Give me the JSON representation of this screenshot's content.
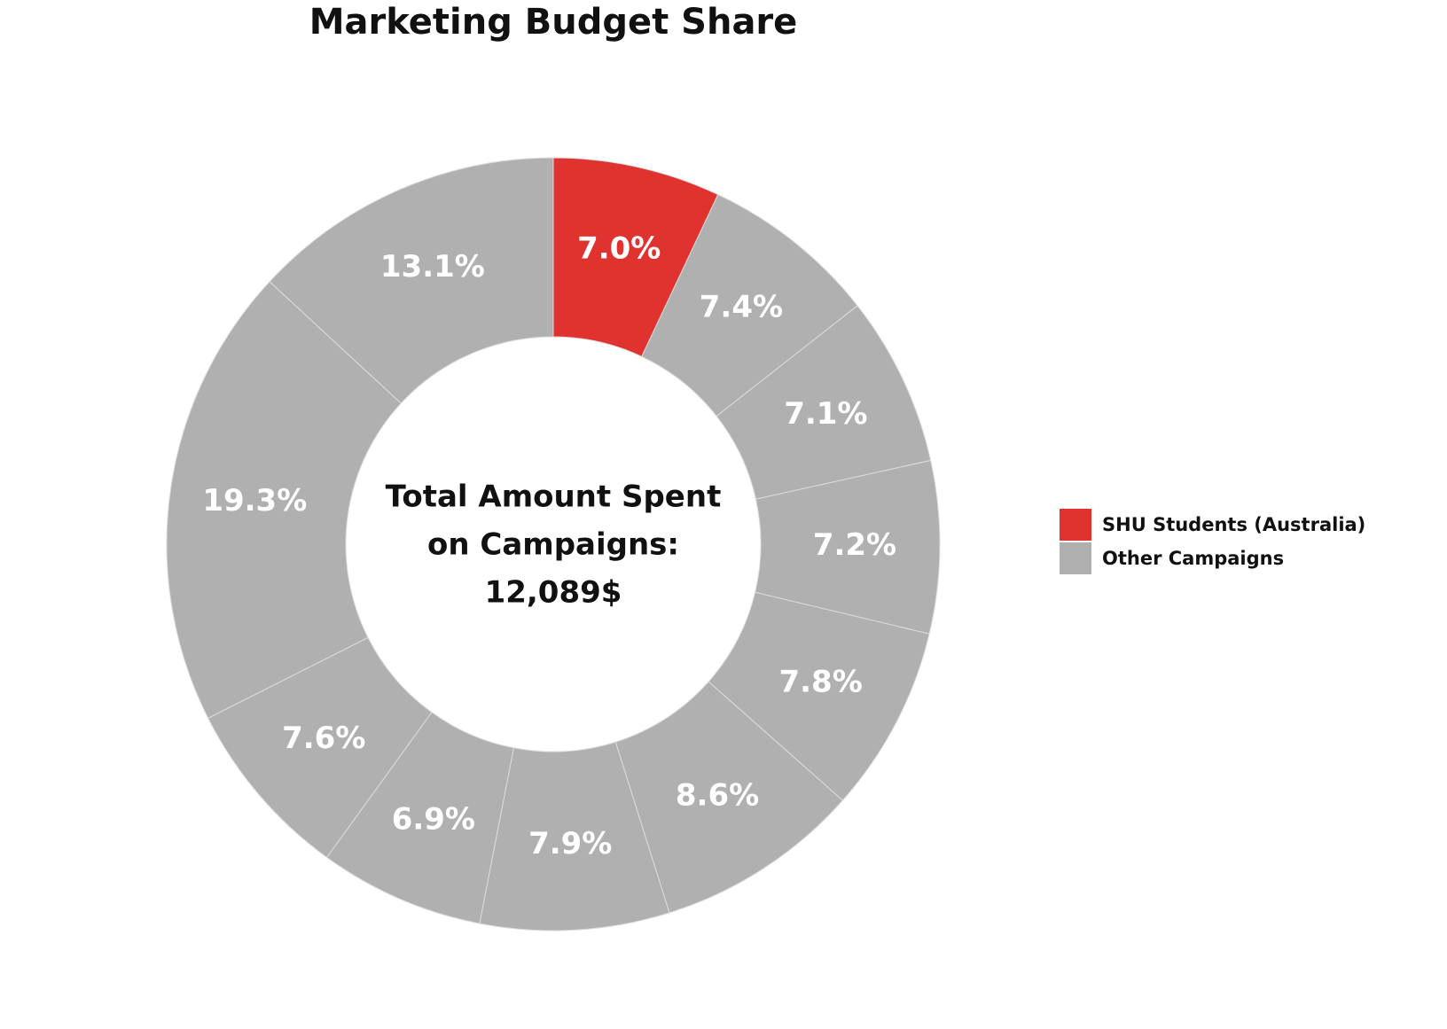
{
  "chart_data": {
    "type": "pie",
    "title": "Marketing Budget Share",
    "center_text": [
      "Total Amount Spent",
      "on Campaigns:",
      "12,089$"
    ],
    "slices": [
      {
        "value": 7.0,
        "label": "7.0%",
        "series": "SHU Students (Australia)"
      },
      {
        "value": 7.4,
        "label": "7.4%",
        "series": "Other Campaigns"
      },
      {
        "value": 7.1,
        "label": "7.1%",
        "series": "Other Campaigns"
      },
      {
        "value": 7.2,
        "label": "7.2%",
        "series": "Other Campaigns"
      },
      {
        "value": 7.8,
        "label": "7.8%",
        "series": "Other Campaigns"
      },
      {
        "value": 8.6,
        "label": "8.6%",
        "series": "Other Campaigns"
      },
      {
        "value": 7.9,
        "label": "7.9%",
        "series": "Other Campaigns"
      },
      {
        "value": 6.9,
        "label": "6.9%",
        "series": "Other Campaigns"
      },
      {
        "value": 7.6,
        "label": "7.6%",
        "series": "Other Campaigns"
      },
      {
        "value": 19.3,
        "label": "19.3%",
        "series": "Other Campaigns"
      },
      {
        "value": 13.1,
        "label": "13.1%",
        "series": "Other Campaigns"
      }
    ],
    "legend": {
      "placement": "right",
      "entries": [
        {
          "name": "SHU Students (Australia)",
          "color": "#e03330"
        },
        {
          "name": "Other Campaigns",
          "color": "#b0b0b0"
        }
      ]
    }
  }
}
